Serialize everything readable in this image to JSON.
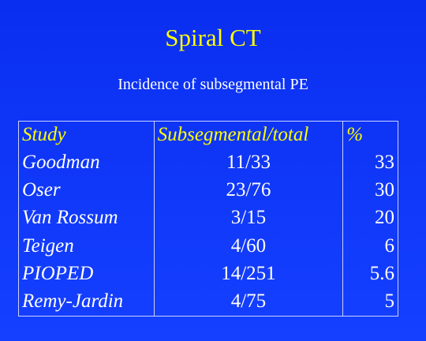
{
  "slide": {
    "title": "Spiral CT",
    "subtitle": "Incidence of subsegmental PE"
  },
  "table": {
    "headers": [
      "Study",
      "Subsegmental/total",
      "%"
    ],
    "rows": [
      {
        "study": "Goodman",
        "ratio": "11/33",
        "pct": "33"
      },
      {
        "study": "Oser",
        "ratio": "23/76",
        "pct": "30"
      },
      {
        "study": "Van Rossum",
        "ratio": "3/15",
        "pct": "20"
      },
      {
        "study": "Teigen",
        "ratio": "4/60",
        "pct": "6"
      },
      {
        "study": "PIOPED",
        "ratio": "14/251",
        "pct": "5.6"
      },
      {
        "study": "Remy-Jardin",
        "ratio": "4/75",
        "pct": "5"
      }
    ]
  },
  "colors": {
    "background": "#1138f8",
    "title": "#ffff00",
    "header": "#ffff00",
    "text": "#ffffff"
  }
}
